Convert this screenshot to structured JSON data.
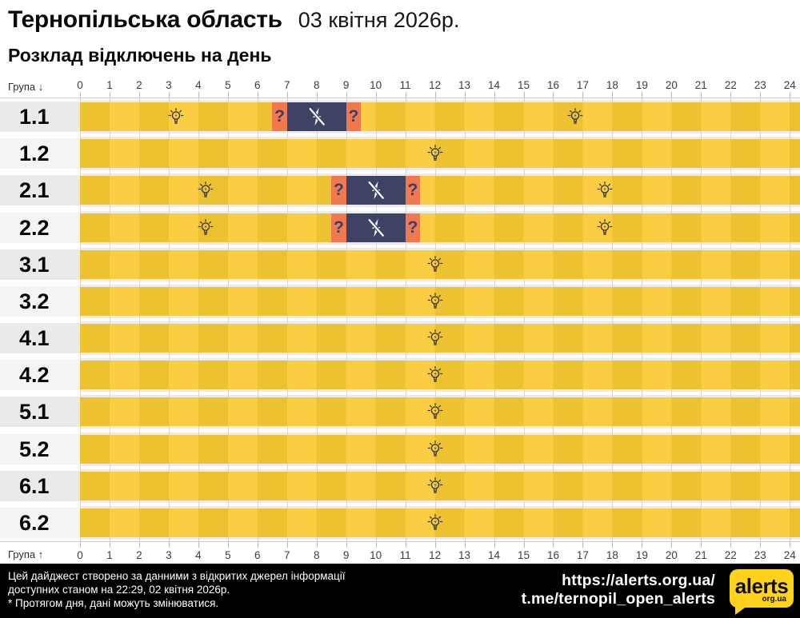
{
  "header": {
    "region": "Тернопільська область",
    "date": "03 квітня 2026р.",
    "subtitle": "Розклад відключень на день"
  },
  "axis": {
    "group_label_down": "Група ↓",
    "group_label_up": "Група ↑",
    "hours": [
      "0",
      "1",
      "2",
      "3",
      "4",
      "5",
      "6",
      "7",
      "8",
      "9",
      "10",
      "11",
      "12",
      "13",
      "14",
      "15",
      "16",
      "17",
      "18",
      "19",
      "20",
      "21",
      "22",
      "23",
      "24"
    ]
  },
  "icons": {
    "question_mark": "?",
    "power_on_icon": "lightbulb-with-rays",
    "power_off_icon": "crossed-out-lightning-bolt"
  },
  "colors": {
    "on_even": "#EDC231",
    "on_odd": "#FACD43",
    "off": "#3E4366",
    "maybe": "#F07950",
    "question_text": "#3A3F63",
    "row_label_bg_a": "#EAEAEA",
    "row_label_bg_b": "#F4F4F4",
    "grid": "#D6D6D6",
    "logo_yellow": "#FFD21E"
  },
  "chart_data": {
    "type": "heatmap",
    "subtype": "power-outage-daily-schedule-timeline",
    "title": "Розклад відключень на день",
    "region": "Тернопільська область",
    "date": "03 квітня 2026р.",
    "x_axis": {
      "range": [
        0,
        24
      ],
      "unit": "hour",
      "ticks": [
        0,
        1,
        2,
        3,
        4,
        5,
        6,
        7,
        8,
        9,
        10,
        11,
        12,
        13,
        14,
        15,
        16,
        17,
        18,
        19,
        20,
        21,
        22,
        23,
        24
      ]
    },
    "y_categories": [
      "1.1",
      "1.2",
      "2.1",
      "2.2",
      "3.1",
      "3.2",
      "4.1",
      "4.2",
      "5.1",
      "5.2",
      "6.1",
      "6.2"
    ],
    "legend": {
      "on": "power on (yellow)",
      "off": "outage (navy, crossed bolt)",
      "maybe": "possible outage (orange, ?)"
    },
    "series": [
      {
        "group": "1.1",
        "intervals": [
          {
            "state": "on",
            "from": 0,
            "to": 6.5
          },
          {
            "state": "maybe",
            "from": 6.5,
            "to": 7
          },
          {
            "state": "off",
            "from": 7,
            "to": 9
          },
          {
            "state": "maybe",
            "from": 9,
            "to": 9.5
          },
          {
            "state": "on",
            "from": 9.5,
            "to": 24
          }
        ],
        "bulb_markers_h": [
          3.25,
          16.75
        ]
      },
      {
        "group": "1.2",
        "intervals": [
          {
            "state": "on",
            "from": 0,
            "to": 24
          }
        ],
        "bulb_markers_h": [
          12
        ]
      },
      {
        "group": "2.1",
        "intervals": [
          {
            "state": "on",
            "from": 0,
            "to": 8.5
          },
          {
            "state": "maybe",
            "from": 8.5,
            "to": 9
          },
          {
            "state": "off",
            "from": 9,
            "to": 11
          },
          {
            "state": "maybe",
            "from": 11,
            "to": 11.5
          },
          {
            "state": "on",
            "from": 11.5,
            "to": 24
          }
        ],
        "bulb_markers_h": [
          4.25,
          17.75
        ]
      },
      {
        "group": "2.2",
        "intervals": [
          {
            "state": "on",
            "from": 0,
            "to": 8.5
          },
          {
            "state": "maybe",
            "from": 8.5,
            "to": 9
          },
          {
            "state": "off",
            "from": 9,
            "to": 11
          },
          {
            "state": "maybe",
            "from": 11,
            "to": 11.5
          },
          {
            "state": "on",
            "from": 11.5,
            "to": 24
          }
        ],
        "bulb_markers_h": [
          4.25,
          17.75
        ]
      },
      {
        "group": "3.1",
        "intervals": [
          {
            "state": "on",
            "from": 0,
            "to": 24
          }
        ],
        "bulb_markers_h": [
          12
        ]
      },
      {
        "group": "3.2",
        "intervals": [
          {
            "state": "on",
            "from": 0,
            "to": 24
          }
        ],
        "bulb_markers_h": [
          12
        ]
      },
      {
        "group": "4.1",
        "intervals": [
          {
            "state": "on",
            "from": 0,
            "to": 24
          }
        ],
        "bulb_markers_h": [
          12
        ]
      },
      {
        "group": "4.2",
        "intervals": [
          {
            "state": "on",
            "from": 0,
            "to": 24
          }
        ],
        "bulb_markers_h": [
          12
        ]
      },
      {
        "group": "5.1",
        "intervals": [
          {
            "state": "on",
            "from": 0,
            "to": 24
          }
        ],
        "bulb_markers_h": [
          12
        ]
      },
      {
        "group": "5.2",
        "intervals": [
          {
            "state": "on",
            "from": 0,
            "to": 24
          }
        ],
        "bulb_markers_h": [
          12
        ]
      },
      {
        "group": "6.1",
        "intervals": [
          {
            "state": "on",
            "from": 0,
            "to": 24
          }
        ],
        "bulb_markers_h": [
          12
        ]
      },
      {
        "group": "6.2",
        "intervals": [
          {
            "state": "on",
            "from": 0,
            "to": 24
          }
        ],
        "bulb_markers_h": [
          12
        ]
      }
    ]
  },
  "footer": {
    "lines": [
      "Цей дайджест створено за данними з відкритих джерел інформації",
      "доступних станом на 22:29, 02 квітня 2026р.",
      "* Протягом дня, дані можуть змінюватися."
    ],
    "link_site": "https://alerts.org.ua/",
    "link_telegram": "t.me/ternopil_open_alerts",
    "logo": {
      "text": "alerts",
      "sub": "org.ua"
    }
  }
}
